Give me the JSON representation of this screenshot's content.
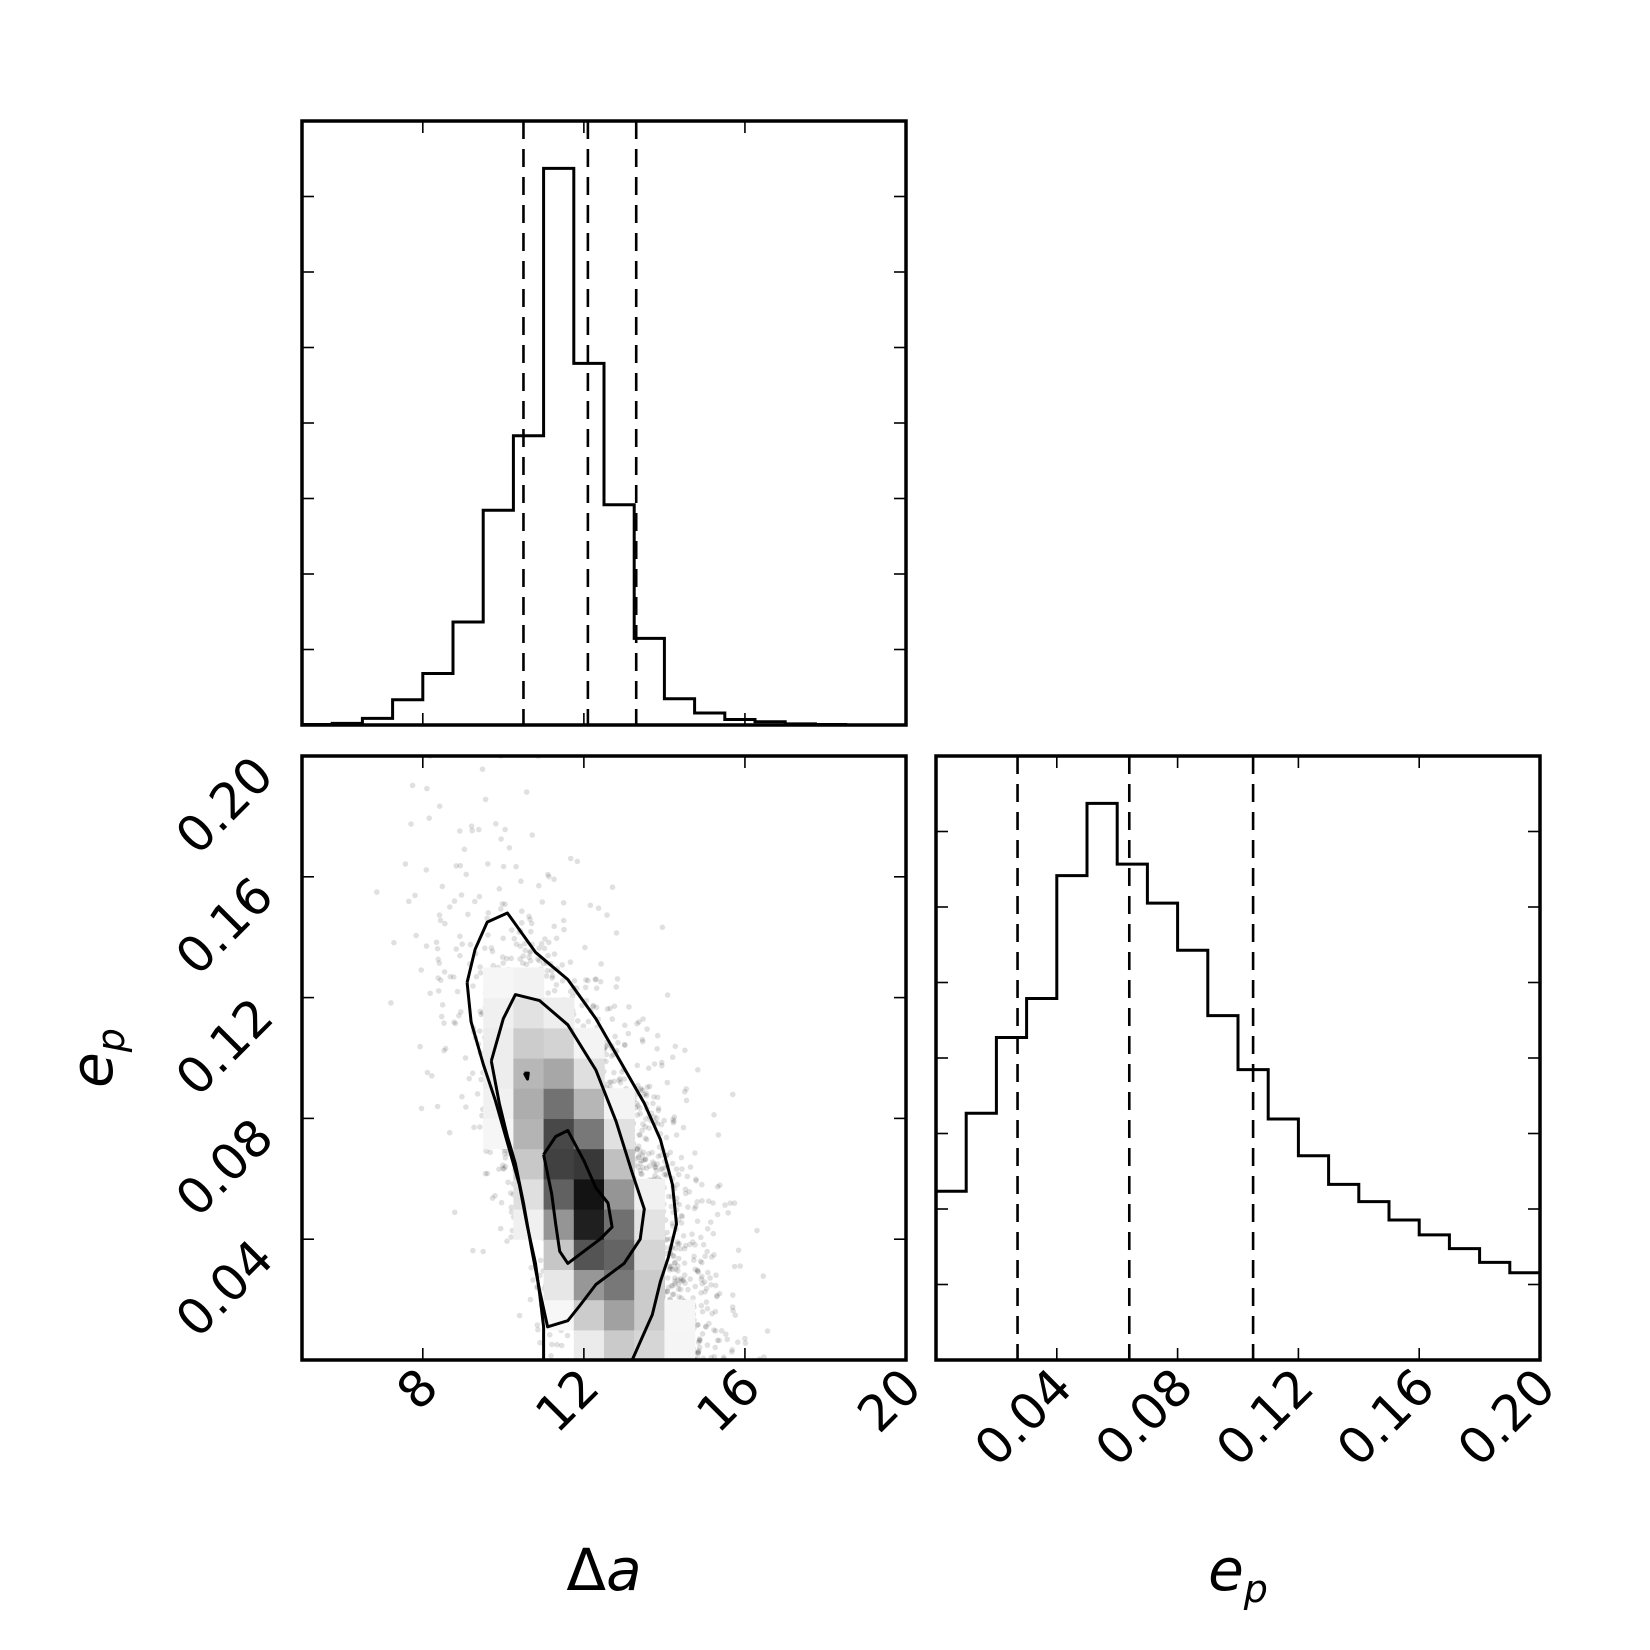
{
  "chart_data": [
    {
      "type": "histogram",
      "panel": "top-left",
      "variable": "Δa",
      "xlim": [
        5,
        20
      ],
      "bin_edges": [
        5,
        5.75,
        6.5,
        7.25,
        8,
        8.75,
        9.5,
        10.25,
        11,
        11.75,
        12.5,
        13.25,
        14,
        14.75,
        15.5,
        16.25,
        17,
        17.75,
        18.5,
        19.25,
        20
      ],
      "counts": [
        0.05,
        0.15,
        0.6,
        2.3,
        4.7,
        9.4,
        19.6,
        26.4,
        50.8,
        33.0,
        20.1,
        7.9,
        2.4,
        1.1,
        0.5,
        0.3,
        0.1,
        0.05,
        0.0,
        0.0
      ],
      "quantiles": [
        10.5,
        12.1,
        13.3
      ]
    },
    {
      "type": "scatter-density",
      "panel": "bottom-left",
      "xlim": [
        5,
        20
      ],
      "ylim": [
        0,
        0.2
      ],
      "xlabel_main": "Δ",
      "xlabel_sub": "a",
      "ylabel_main": "e",
      "ylabel_sub": "p",
      "xticks": [
        "8",
        "12",
        "16",
        "20"
      ],
      "yticks": [
        "0.04",
        "0.08",
        "0.12",
        "0.16",
        "0.20"
      ],
      "contours": [
        [
          [
            9.1,
            0.125
          ],
          [
            9.3,
            0.136
          ],
          [
            9.6,
            0.145
          ],
          [
            10.1,
            0.148
          ],
          [
            10.8,
            0.135
          ],
          [
            11.6,
            0.126
          ],
          [
            12.3,
            0.113
          ],
          [
            12.9,
            0.099
          ],
          [
            13.5,
            0.085
          ],
          [
            13.9,
            0.073
          ],
          [
            14.2,
            0.058
          ],
          [
            14.3,
            0.045
          ],
          [
            14.1,
            0.034
          ],
          [
            13.9,
            0.026
          ],
          [
            13.7,
            0.015
          ],
          [
            13.4,
            0.006
          ],
          [
            13.2,
            0.0
          ],
          [
            11.0,
            0.0
          ],
          [
            11.0,
            0.011
          ],
          [
            10.9,
            0.022
          ],
          [
            10.8,
            0.032
          ],
          [
            10.6,
            0.044
          ],
          [
            10.4,
            0.058
          ],
          [
            10.1,
            0.072
          ],
          [
            9.8,
            0.086
          ],
          [
            9.5,
            0.098
          ],
          [
            9.2,
            0.112
          ],
          [
            9.1,
            0.125
          ]
        ],
        [
          [
            9.7,
            0.099
          ],
          [
            10.0,
            0.113
          ],
          [
            10.3,
            0.121
          ],
          [
            10.9,
            0.119
          ],
          [
            11.6,
            0.111
          ],
          [
            12.3,
            0.096
          ],
          [
            12.8,
            0.079
          ],
          [
            13.2,
            0.062
          ],
          [
            13.5,
            0.05
          ],
          [
            13.4,
            0.04
          ],
          [
            13.0,
            0.032
          ],
          [
            12.3,
            0.025
          ],
          [
            11.9,
            0.018
          ],
          [
            11.6,
            0.013
          ],
          [
            11.1,
            0.011
          ],
          [
            10.9,
            0.023
          ],
          [
            10.7,
            0.037
          ],
          [
            10.5,
            0.052
          ],
          [
            10.3,
            0.065
          ],
          [
            10.1,
            0.074
          ],
          [
            9.9,
            0.085
          ],
          [
            9.7,
            0.099
          ]
        ],
        [
          [
            11.0,
            0.068
          ],
          [
            11.3,
            0.074
          ],
          [
            11.6,
            0.076
          ],
          [
            12.0,
            0.066
          ],
          [
            12.3,
            0.057
          ],
          [
            12.6,
            0.052
          ],
          [
            12.7,
            0.044
          ],
          [
            12.4,
            0.04
          ],
          [
            11.6,
            0.032
          ],
          [
            11.4,
            0.036
          ],
          [
            11.3,
            0.045
          ],
          [
            11.2,
            0.055
          ],
          [
            11.0,
            0.068
          ]
        ],
        [
          [
            10.52,
            0.095
          ],
          [
            10.62,
            0.095
          ],
          [
            10.6,
            0.093
          ],
          [
            10.52,
            0.095
          ]
        ]
      ]
    },
    {
      "type": "histogram",
      "panel": "bottom-right",
      "variable": "e",
      "xlim": [
        0,
        0.2
      ],
      "bin_edges": [
        0,
        0.01,
        0.02,
        0.03,
        0.04,
        0.05,
        0.06,
        0.07,
        0.08,
        0.09,
        0.1,
        0.11,
        0.12,
        0.13,
        0.14,
        0.15,
        0.16,
        0.17,
        0.18,
        0.19,
        0.2
      ],
      "counts": [
        1.47,
        2.15,
        2.81,
        3.15,
        4.22,
        4.85,
        4.32,
        3.98,
        3.57,
        3.0,
        2.53,
        2.1,
        1.78,
        1.53,
        1.38,
        1.22,
        1.09,
        0.97,
        0.85,
        0.76
      ],
      "quantiles": [
        0.027,
        0.064,
        0.105
      ],
      "xlabel_main": "e",
      "xlabel_sub": "p",
      "xticks": [
        "0.04",
        "0.08",
        "0.12",
        "0.16",
        "0.20"
      ]
    }
  ]
}
